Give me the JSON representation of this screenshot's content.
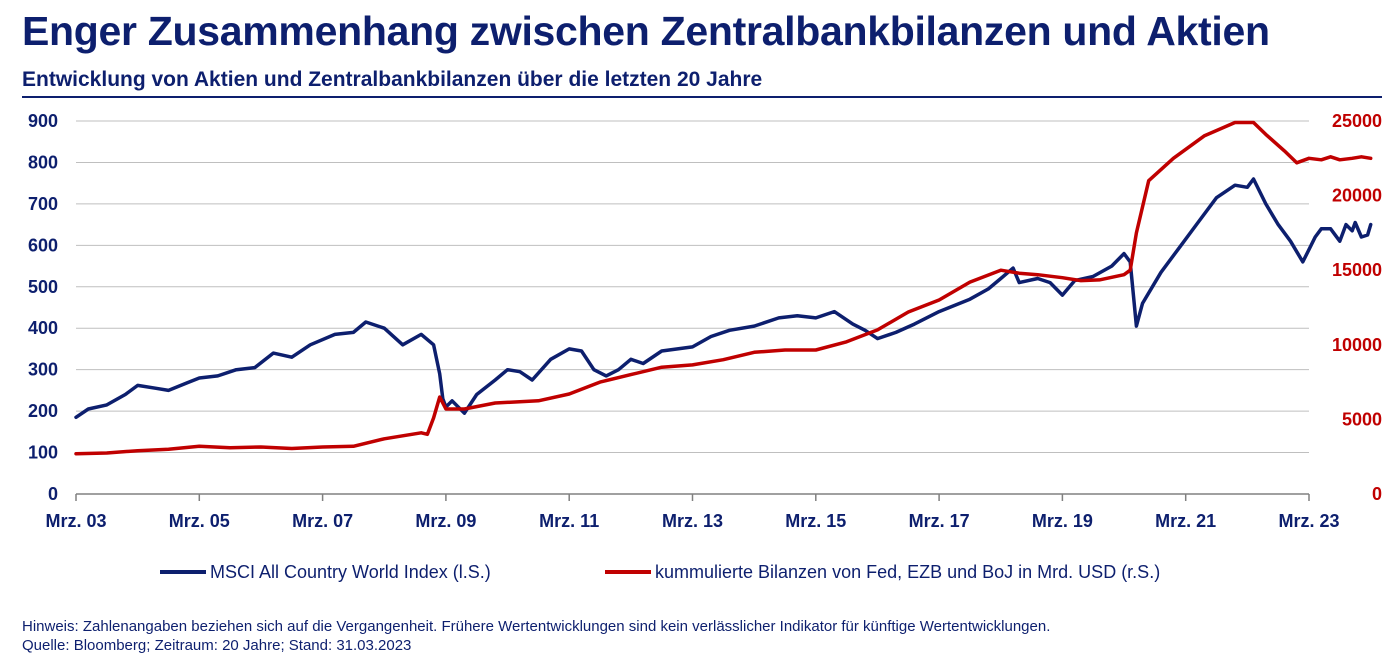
{
  "title": "Enger Zusammenhang zwischen Zentralbankbilanzen und Aktien",
  "subtitle": "Entwicklung von Aktien und Zentralbankbilanzen über die letzten 20 Jahre",
  "colors": {
    "navy": "#0d1f6e",
    "red": "#c00000",
    "grid": "#bfbfbf"
  },
  "legend": {
    "msci": "MSCI All Country World Index (l.S.)",
    "cb": "kummulierte Bilanzen von Fed, EZB und BoJ in Mrd. USD (r.S.)"
  },
  "footer": {
    "note": "Hinweis: Zahlenangaben beziehen sich auf die Vergangenheit. Frühere Wertentwicklungen sind kein verlässlicher Indikator für künftige Wertentwicklungen.",
    "source": "Quelle: Bloomberg; Zeitraum: 20 Jahre; Stand: 31.03.2023"
  },
  "chart_data": {
    "type": "line",
    "x_unit": "years since Mar 2003",
    "x_ticks": [
      {
        "x": 0,
        "label": "Mrz. 03"
      },
      {
        "x": 2,
        "label": "Mrz. 05"
      },
      {
        "x": 4,
        "label": "Mrz. 07"
      },
      {
        "x": 6,
        "label": "Mrz. 09"
      },
      {
        "x": 8,
        "label": "Mrz. 11"
      },
      {
        "x": 10,
        "label": "Mrz. 13"
      },
      {
        "x": 12,
        "label": "Mrz. 15"
      },
      {
        "x": 14,
        "label": "Mrz. 17"
      },
      {
        "x": 16,
        "label": "Mrz. 19"
      },
      {
        "x": 18,
        "label": "Mrz. 21"
      },
      {
        "x": 20,
        "label": "Mrz. 23"
      }
    ],
    "y_left": {
      "min": 0,
      "max": 900,
      "ticks": [
        0,
        100,
        200,
        300,
        400,
        500,
        600,
        700,
        800,
        900
      ]
    },
    "y_right": {
      "min": 0,
      "max": 25000,
      "ticks": [
        0,
        5000,
        10000,
        15000,
        20000,
        25000
      ]
    },
    "series": [
      {
        "name": "MSCI All Country World Index (l.S.)",
        "axis": "left",
        "color": "#0d1f6e",
        "points": [
          [
            0,
            185
          ],
          [
            0.2,
            205
          ],
          [
            0.5,
            215
          ],
          [
            0.8,
            240
          ],
          [
            1.0,
            262
          ],
          [
            1.3,
            255
          ],
          [
            1.5,
            250
          ],
          [
            1.8,
            268
          ],
          [
            2.0,
            280
          ],
          [
            2.3,
            285
          ],
          [
            2.6,
            300
          ],
          [
            2.9,
            305
          ],
          [
            3.2,
            340
          ],
          [
            3.5,
            330
          ],
          [
            3.8,
            360
          ],
          [
            4.2,
            385
          ],
          [
            4.5,
            390
          ],
          [
            4.7,
            415
          ],
          [
            5.0,
            400
          ],
          [
            5.3,
            360
          ],
          [
            5.6,
            385
          ],
          [
            5.8,
            360
          ],
          [
            5.9,
            290
          ],
          [
            5.95,
            230
          ],
          [
            6.0,
            210
          ],
          [
            6.1,
            225
          ],
          [
            6.3,
            195
          ],
          [
            6.5,
            240
          ],
          [
            6.8,
            275
          ],
          [
            7.0,
            300
          ],
          [
            7.2,
            295
          ],
          [
            7.4,
            275
          ],
          [
            7.7,
            325
          ],
          [
            8.0,
            350
          ],
          [
            8.2,
            345
          ],
          [
            8.4,
            300
          ],
          [
            8.6,
            285
          ],
          [
            8.8,
            300
          ],
          [
            9.0,
            325
          ],
          [
            9.2,
            315
          ],
          [
            9.5,
            345
          ],
          [
            10.0,
            355
          ],
          [
            10.3,
            380
          ],
          [
            10.6,
            395
          ],
          [
            11.0,
            405
          ],
          [
            11.4,
            425
          ],
          [
            11.7,
            430
          ],
          [
            12.0,
            425
          ],
          [
            12.3,
            440
          ],
          [
            12.6,
            410
          ],
          [
            12.8,
            395
          ],
          [
            13.0,
            375
          ],
          [
            13.3,
            390
          ],
          [
            13.6,
            410
          ],
          [
            14.0,
            440
          ],
          [
            14.5,
            470
          ],
          [
            14.8,
            495
          ],
          [
            15.0,
            520
          ],
          [
            15.2,
            545
          ],
          [
            15.3,
            510
          ],
          [
            15.6,
            520
          ],
          [
            15.8,
            510
          ],
          [
            16.0,
            480
          ],
          [
            16.2,
            515
          ],
          [
            16.5,
            525
          ],
          [
            16.8,
            550
          ],
          [
            17.0,
            580
          ],
          [
            17.1,
            560
          ],
          [
            17.2,
            405
          ],
          [
            17.3,
            460
          ],
          [
            17.6,
            535
          ],
          [
            17.9,
            595
          ],
          [
            18.2,
            655
          ],
          [
            18.5,
            715
          ],
          [
            18.8,
            745
          ],
          [
            19.0,
            740
          ],
          [
            19.1,
            760
          ],
          [
            19.3,
            700
          ],
          [
            19.5,
            650
          ],
          [
            19.7,
            610
          ],
          [
            19.9,
            560
          ],
          [
            20.0,
            590
          ],
          [
            20.1,
            620
          ],
          [
            20.2,
            640
          ],
          [
            20.35,
            640
          ],
          [
            20.5,
            610
          ],
          [
            20.6,
            650
          ],
          [
            20.7,
            635
          ],
          [
            20.75,
            655
          ],
          [
            20.85,
            620
          ],
          [
            20.95,
            625
          ],
          [
            21.0,
            650
          ]
        ]
      },
      {
        "name": "kummulierte Bilanzen von Fed, EZB und BoJ in Mrd. USD (r.S.)",
        "axis": "right",
        "color": "#c00000",
        "points": [
          [
            0,
            2700
          ],
          [
            0.5,
            2750
          ],
          [
            1.0,
            2900
          ],
          [
            1.5,
            3000
          ],
          [
            2.0,
            3200
          ],
          [
            2.5,
            3100
          ],
          [
            3.0,
            3150
          ],
          [
            3.5,
            3050
          ],
          [
            4.0,
            3150
          ],
          [
            4.5,
            3200
          ],
          [
            5.0,
            3700
          ],
          [
            5.3,
            3900
          ],
          [
            5.6,
            4100
          ],
          [
            5.7,
            4000
          ],
          [
            5.8,
            5100
          ],
          [
            5.9,
            6500
          ],
          [
            6.0,
            5700
          ],
          [
            6.3,
            5700
          ],
          [
            6.8,
            6100
          ],
          [
            7.5,
            6250
          ],
          [
            8.0,
            6700
          ],
          [
            8.5,
            7500
          ],
          [
            9.0,
            8000
          ],
          [
            9.5,
            8500
          ],
          [
            10.0,
            8650
          ],
          [
            10.5,
            9000
          ],
          [
            11.0,
            9500
          ],
          [
            11.5,
            9650
          ],
          [
            12.0,
            9650
          ],
          [
            12.5,
            10200
          ],
          [
            13.0,
            11000
          ],
          [
            13.5,
            12200
          ],
          [
            14.0,
            13000
          ],
          [
            14.5,
            14200
          ],
          [
            15.0,
            15000
          ],
          [
            15.3,
            14800
          ],
          [
            15.6,
            14700
          ],
          [
            16.0,
            14500
          ],
          [
            16.3,
            14300
          ],
          [
            16.6,
            14350
          ],
          [
            17.0,
            14700
          ],
          [
            17.1,
            15000
          ],
          [
            17.2,
            17500
          ],
          [
            17.4,
            21000
          ],
          [
            17.8,
            22500
          ],
          [
            18.3,
            24000
          ],
          [
            18.8,
            24900
          ],
          [
            19.1,
            24900
          ],
          [
            19.3,
            24100
          ],
          [
            19.6,
            23000
          ],
          [
            19.8,
            22200
          ],
          [
            20.0,
            22500
          ],
          [
            20.2,
            22400
          ],
          [
            20.35,
            22600
          ],
          [
            20.5,
            22400
          ],
          [
            20.7,
            22500
          ],
          [
            20.85,
            22600
          ],
          [
            21.0,
            22500
          ]
        ]
      }
    ]
  }
}
